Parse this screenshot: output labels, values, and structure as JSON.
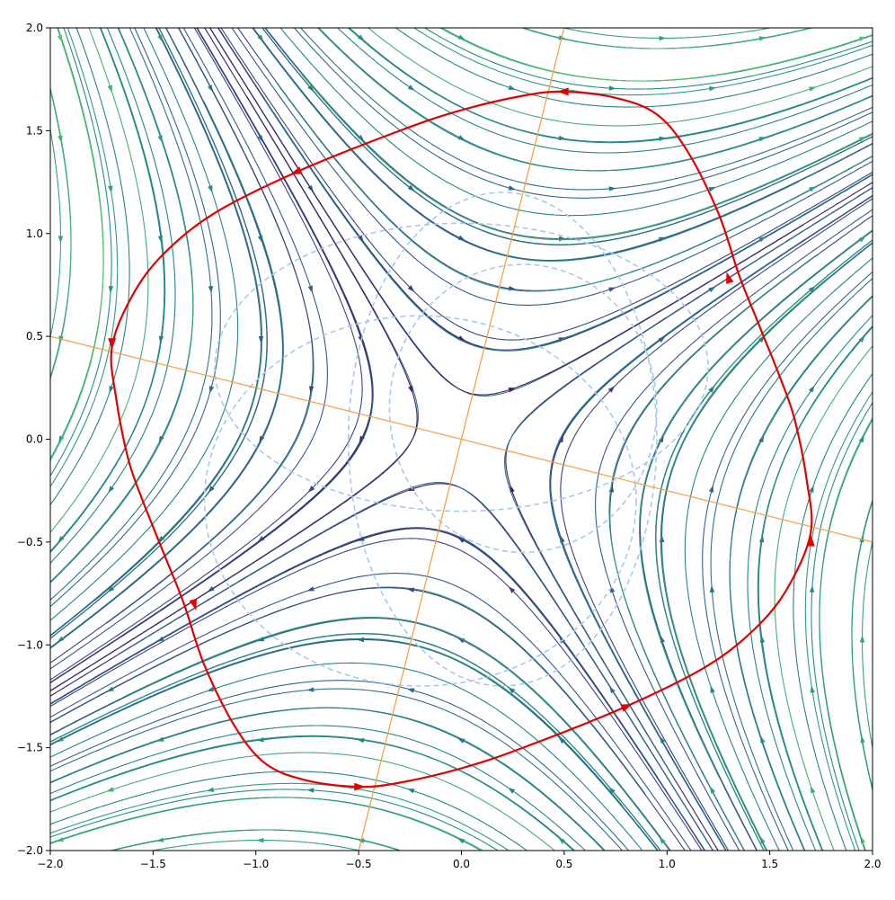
{
  "chart_data": {
    "type": "streamplot",
    "title": "",
    "xlabel": "",
    "ylabel": "",
    "xlim": [
      -2.0,
      2.0
    ],
    "ylim": [
      -2.0,
      2.0
    ],
    "xticks": [
      -2.0,
      -1.5,
      -1.0,
      -0.5,
      0.0,
      0.5,
      1.0,
      1.5,
      2.0
    ],
    "yticks": [
      -2.0,
      -1.5,
      -1.0,
      -0.5,
      0.0,
      0.5,
      1.0,
      1.5,
      2.0
    ],
    "xtick_labels": [
      "−2.0",
      "−1.5",
      "−1.0",
      "−0.5",
      "0.0",
      "0.5",
      "1.0",
      "1.5",
      "2.0"
    ],
    "ytick_labels": [
      "−2.0",
      "−1.5",
      "−1.0",
      "−0.5",
      "0.0",
      "0.5",
      "1.0",
      "1.5",
      "2.0"
    ],
    "grid": false,
    "stream_colormap": [
      "#440154",
      "#3b528b",
      "#21918c",
      "#5ec962",
      "#fde725"
    ],
    "saddle_point": [
      0.0,
      0.0
    ],
    "orange_lines": {
      "color": "#f5a142",
      "lines": [
        {
          "p1": [
            -0.5,
            -2.0
          ],
          "p2": [
            0.5,
            2.0
          ]
        },
        {
          "p1": [
            -2.0,
            0.5
          ],
          "p2": [
            2.0,
            -0.5
          ]
        }
      ]
    },
    "red_closed_orbit": {
      "color": "#e50000",
      "points": [
        [
          0.5,
          1.69
        ],
        [
          0.3,
          1.67
        ],
        [
          0.0,
          1.6
        ],
        [
          -0.3,
          1.5
        ],
        [
          -0.8,
          1.3
        ],
        [
          -1.2,
          1.1
        ],
        [
          -1.45,
          0.9
        ],
        [
          -1.6,
          0.7
        ],
        [
          -1.7,
          0.45
        ],
        [
          -1.68,
          0.2
        ],
        [
          -1.62,
          -0.1
        ],
        [
          -1.55,
          -0.3
        ],
        [
          -1.45,
          -0.55
        ],
        [
          -1.35,
          -0.8
        ],
        [
          -1.25,
          -1.1
        ],
        [
          -1.1,
          -1.4
        ],
        [
          -0.95,
          -1.58
        ],
        [
          -0.75,
          -1.66
        ],
        [
          -0.5,
          -1.69
        ],
        [
          -0.3,
          -1.67
        ],
        [
          0.0,
          -1.6
        ],
        [
          0.3,
          -1.5
        ],
        [
          0.8,
          -1.3
        ],
        [
          1.2,
          -1.1
        ],
        [
          1.45,
          -0.9
        ],
        [
          1.6,
          -0.7
        ],
        [
          1.7,
          -0.45
        ],
        [
          1.68,
          -0.2
        ],
        [
          1.62,
          0.1
        ],
        [
          1.55,
          0.3
        ],
        [
          1.45,
          0.55
        ],
        [
          1.35,
          0.8
        ],
        [
          1.25,
          1.1
        ],
        [
          1.1,
          1.4
        ],
        [
          0.95,
          1.58
        ],
        [
          0.75,
          1.66
        ]
      ],
      "arrows": [
        {
          "at": [
            0.5,
            1.69
          ],
          "dir": [
            -1,
            0
          ]
        },
        {
          "at": [
            -0.8,
            1.3
          ],
          "dir": [
            -1,
            -0.4
          ]
        },
        {
          "at": [
            -1.7,
            0.47
          ],
          "dir": [
            0,
            -1
          ]
        },
        {
          "at": [
            -1.3,
            -0.8
          ],
          "dir": [
            0.3,
            -1
          ]
        },
        {
          "at": [
            -0.5,
            -1.69
          ],
          "dir": [
            1,
            0
          ]
        },
        {
          "at": [
            0.8,
            -1.3
          ],
          "dir": [
            1,
            0.4
          ]
        },
        {
          "at": [
            1.7,
            -0.5
          ],
          "dir": [
            0,
            1
          ]
        },
        {
          "at": [
            1.3,
            0.78
          ],
          "dir": [
            -0.3,
            1
          ]
        }
      ]
    },
    "dashed_curves": {
      "color": "#a8c8f0",
      "ellipses": [
        {
          "center": [
            0.0,
            0.35
          ],
          "rx": 1.2,
          "ry": 0.7,
          "angle": 0
        },
        {
          "center": [
            0.2,
            0.0
          ],
          "rx": 0.75,
          "ry": 1.2,
          "angle": 0
        },
        {
          "center": [
            -0.2,
            -0.3
          ],
          "rx": 1.05,
          "ry": 0.9,
          "angle": 0
        },
        {
          "center": [
            0.3,
            0.15
          ],
          "rx": 0.65,
          "ry": 0.7,
          "angle": 0
        }
      ]
    }
  }
}
